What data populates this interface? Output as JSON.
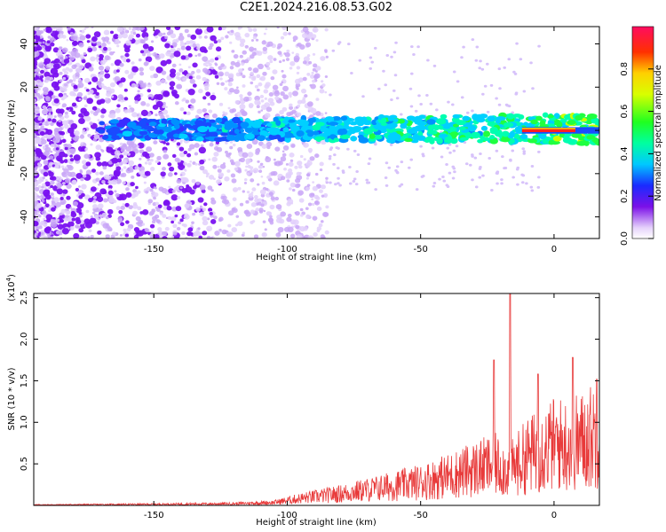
{
  "title": "C2E1.2024.216.08.53.G02",
  "chart_data": [
    {
      "type": "heatmap",
      "xlabel": "Height of straight line (km)",
      "ylabel": "Frequency (Hz)",
      "xlim": [
        -195,
        17
      ],
      "ylim": [
        -50,
        48
      ],
      "xticks": [
        -150,
        -100,
        -50,
        0
      ],
      "yticks": [
        -40,
        -20,
        0,
        20,
        40
      ],
      "colorbar": {
        "label": "Normalized spectral amplitude",
        "range": [
          0,
          1
        ],
        "ticks": [
          "0.0",
          "0.2",
          "0.4",
          "0.6",
          "0.8"
        ],
        "colormap": "rainbow"
      },
      "ridge_frequency_hz": 0
    },
    {
      "type": "line",
      "xlabel": "Height of straight line (km)",
      "ylabel": "SNR (10 * v/v)",
      "y_multiplier": "(x10",
      "y_exponent": "4",
      "y_multiplier_close": ")",
      "xlim": [
        -195,
        17
      ],
      "ylim": [
        0,
        2.55
      ],
      "xticks": [
        -150,
        -100,
        -50,
        0
      ],
      "yticks": [
        "0.5",
        "1.0",
        "1.5",
        "2.0",
        "2.5"
      ],
      "color": "#e83a3a",
      "envelope": {
        "x": [
          -195,
          -150,
          -120,
          -105,
          -95,
          -80,
          -65,
          -50,
          -40,
          -30,
          -22,
          -17,
          -10,
          -5,
          0,
          5,
          10,
          17
        ],
        "y": [
          0.01,
          0.02,
          0.03,
          0.05,
          0.12,
          0.2,
          0.3,
          0.4,
          0.5,
          0.62,
          0.7,
          0.6,
          0.85,
          0.95,
          1.05,
          1.05,
          1.1,
          1.25
        ]
      },
      "peaks": [
        {
          "x": -16.5,
          "y": 2.55
        },
        {
          "x": -22.5,
          "y": 1.75
        },
        {
          "x": 7.0,
          "y": 1.78
        },
        {
          "x": -6.0,
          "y": 1.58
        },
        {
          "x": 16.0,
          "y": 1.52
        }
      ]
    }
  ]
}
